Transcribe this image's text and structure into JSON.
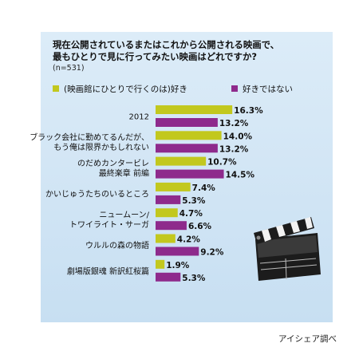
{
  "chart_data": {
    "type": "bar",
    "orientation": "horizontal",
    "title_lines": [
      "現在公開されているまたはこれから公開される映画で、",
      "最もひとりで見に行ってみたい映画はどれですか?"
    ],
    "sample_size": "(n=531)",
    "unit": "%",
    "categories": [
      [
        "2012"
      ],
      [
        "ブラック会社に勤めてるんだが、",
        "もう俺は限界かもしれない"
      ],
      [
        "のだめカンタービレ",
        "最終楽章 前編"
      ],
      [
        "かいじゅうたちのいるところ"
      ],
      [
        "ニュームーン/",
        "トワイライト・サーガ"
      ],
      [
        "ウルルの森の物語"
      ],
      [
        "劇場版銀魂 新訳紅桜篇"
      ]
    ],
    "series": [
      {
        "name": "(映画館にひとりで行くのは)好き",
        "color": "#c2c81e",
        "values": [
          16.3,
          14.0,
          10.7,
          7.4,
          4.7,
          4.2,
          1.9
        ]
      },
      {
        "name": "好きではない",
        "color": "#8e2a8c",
        "values": [
          13.2,
          13.2,
          14.5,
          5.3,
          6.6,
          9.2,
          5.3
        ]
      }
    ],
    "legend_position": "top",
    "source": "アイシェア調べ"
  },
  "decoration": {
    "icon": "clapperboard-icon"
  }
}
